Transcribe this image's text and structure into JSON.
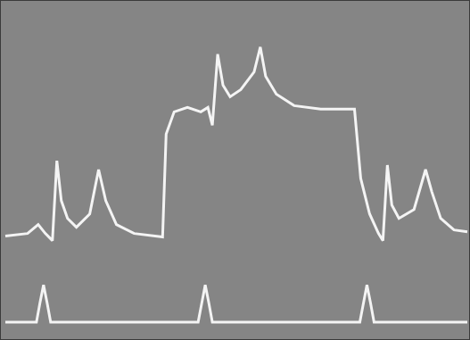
{
  "chart_data": {
    "type": "line",
    "xlim": [
      0,
      527
    ],
    "ylim": [
      0,
      381
    ],
    "tick_labels": false,
    "grid": false,
    "series": [
      {
        "color": "#f4f4f4",
        "x": [
          5,
          30,
          42,
          50,
          58,
          63,
          68,
          75,
          85,
          100,
          110,
          118,
          130,
          150,
          182,
          186,
          195,
          210,
          225,
          233,
          238,
          244,
          250,
          258,
          270,
          285,
          292,
          298,
          310,
          330,
          360,
          398,
          405,
          415,
          425,
          430,
          435,
          440,
          448,
          465,
          478,
          485,
          495,
          510,
          525
        ],
        "values": [
          116,
          119,
          129,
          119,
          111,
          201,
          156,
          136,
          126,
          141,
          191,
          156,
          129,
          119,
          115,
          231,
          256,
          261,
          256,
          261,
          241,
          321,
          286,
          273,
          281,
          301,
          329,
          296,
          276,
          263,
          259,
          259,
          181,
          141,
          119,
          111,
          196,
          151,
          136,
          146,
          191,
          166,
          136,
          123,
          121
        ]
      },
      {
        "color": "#f4f4f4",
        "x": [
          5,
          40,
          44,
          48,
          52,
          56,
          222,
          226,
          230,
          234,
          238,
          404,
          408,
          412,
          416,
          420,
          525
        ],
        "values": [
          19,
          19,
          41,
          61,
          41,
          19,
          19,
          41,
          61,
          41,
          19,
          19,
          41,
          61,
          41,
          19,
          19
        ]
      }
    ]
  }
}
